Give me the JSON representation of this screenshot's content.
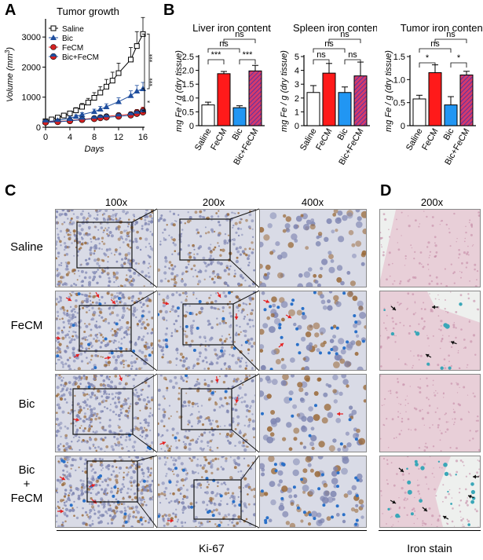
{
  "panels": {
    "A": "A",
    "B": "B",
    "C": "C",
    "D": "D"
  },
  "chart_data": [
    {
      "type": "line",
      "title": "Tumor growth",
      "xlabel": "Days",
      "ylabel": "Volume (mm",
      "ylabel_sup": "3",
      "ylabel_end": ")",
      "xlim": [
        0,
        16
      ],
      "ylim": [
        0,
        3500
      ],
      "xticks": [
        0,
        4,
        8,
        12,
        16
      ],
      "yticks": [
        0,
        1000,
        2000,
        3000
      ],
      "legend_position": "top-left",
      "series": [
        {
          "name": "Saline",
          "color": "#000000",
          "marker": "open-square",
          "x": [
            0,
            1,
            2,
            3,
            4,
            5,
            6,
            7,
            8,
            9,
            10,
            11,
            12,
            14,
            15,
            16
          ],
          "y": [
            200,
            260,
            320,
            390,
            460,
            560,
            680,
            820,
            980,
            1150,
            1350,
            1550,
            1800,
            2250,
            2700,
            3100
          ],
          "err": [
            30,
            40,
            50,
            60,
            70,
            90,
            110,
            140,
            170,
            200,
            240,
            280,
            330,
            400,
            480,
            550
          ]
        },
        {
          "name": "Bic",
          "color": "#1f4e9e",
          "marker": "triangle",
          "x": [
            0,
            2,
            4,
            5,
            6,
            8,
            9,
            10,
            12,
            14,
            15,
            16
          ],
          "y": [
            180,
            230,
            300,
            360,
            420,
            520,
            600,
            680,
            850,
            1050,
            1200,
            1280
          ],
          "err": [
            20,
            30,
            40,
            50,
            60,
            80,
            90,
            100,
            130,
            160,
            190,
            210
          ]
        },
        {
          "name": "FeCM",
          "color": "#d42020",
          "marker": "circle",
          "x": [
            0,
            2,
            4,
            6,
            8,
            9,
            10,
            12,
            14,
            15,
            16
          ],
          "y": [
            170,
            190,
            220,
            260,
            300,
            330,
            360,
            400,
            430,
            500,
            560
          ],
          "err": [
            20,
            20,
            30,
            40,
            50,
            50,
            60,
            70,
            80,
            90,
            110
          ]
        },
        {
          "name": "Bic+FeCM",
          "color": "#1f4e9e",
          "marker": "half-circle",
          "x": [
            0,
            2,
            4,
            6,
            8,
            9,
            10,
            12,
            14,
            15,
            16
          ],
          "y": [
            160,
            180,
            210,
            250,
            280,
            310,
            330,
            360,
            400,
            450,
            500
          ],
          "err": [
            20,
            20,
            30,
            30,
            40,
            40,
            50,
            60,
            70,
            80,
            90
          ]
        }
      ],
      "significance": [
        "***",
        "***",
        "*"
      ]
    },
    {
      "type": "bar",
      "title": "Liver iron content",
      "ylabel": "mg Fe / g (dry tissue)",
      "categories": [
        "Saline",
        "FeCM",
        "Bic",
        "Bic+FeCM"
      ],
      "values": [
        0.75,
        1.88,
        0.65,
        1.98
      ],
      "errors": [
        0.1,
        0.08,
        0.07,
        0.2
      ],
      "ylim": [
        0,
        2.5
      ],
      "yticks": [
        "0",
        "0.5",
        "1.0",
        "1.5",
        "2.0",
        "2.5"
      ],
      "significance": [
        "***",
        "***",
        "ns",
        "ns"
      ]
    },
    {
      "type": "bar",
      "title": "Spleen iron content",
      "ylabel": "mg Fe / g (dry tissue)",
      "categories": [
        "Saline",
        "FeCM",
        "Bic",
        "Bic+FeCM"
      ],
      "values": [
        2.4,
        3.8,
        2.4,
        3.6
      ],
      "errors": [
        0.5,
        0.7,
        0.4,
        1.0
      ],
      "ylim": [
        0,
        5
      ],
      "yticks": [
        "0",
        "1",
        "2",
        "3",
        "4",
        "5"
      ],
      "significance": [
        "ns",
        "ns",
        "ns",
        "ns"
      ]
    },
    {
      "type": "bar",
      "title": "Tumor iron content",
      "ylabel": "mg Fe / g (dry tissue)",
      "categories": [
        "Saline",
        "FeCM",
        "Bic",
        "Bic+FeCM"
      ],
      "values": [
        0.58,
        1.15,
        0.45,
        1.1
      ],
      "errors": [
        0.08,
        0.17,
        0.18,
        0.08
      ],
      "ylim": [
        0,
        1.5
      ],
      "yticks": [
        "0",
        "0.5",
        "1.0",
        "1.5"
      ],
      "significance": [
        "*",
        "*",
        "ns",
        "ns"
      ]
    }
  ],
  "panelC": {
    "columns": [
      "100x",
      "200x",
      "400x"
    ],
    "rows": [
      "Saline",
      "FeCM",
      "Bic",
      "Bic\n+\nFeCM"
    ],
    "row_line1": [
      "Saline",
      "FeCM",
      "Bic",
      "Bic"
    ],
    "row_line2": [
      "",
      "",
      "",
      "+"
    ],
    "row_line3": [
      "",
      "",
      "",
      "FeCM"
    ],
    "footer": "Ki-67"
  },
  "panelD": {
    "column": "200x",
    "footer": "Iron stain"
  },
  "colors": {
    "saline_bar": "#ffffff",
    "fecm_bar": "#ff1a1a",
    "bic_bar": "#2196f3",
    "bicfecm_bar": "#d63a6a",
    "ihc_bg": "#d9dbe6",
    "iron_bg": "#e8cfd8"
  }
}
